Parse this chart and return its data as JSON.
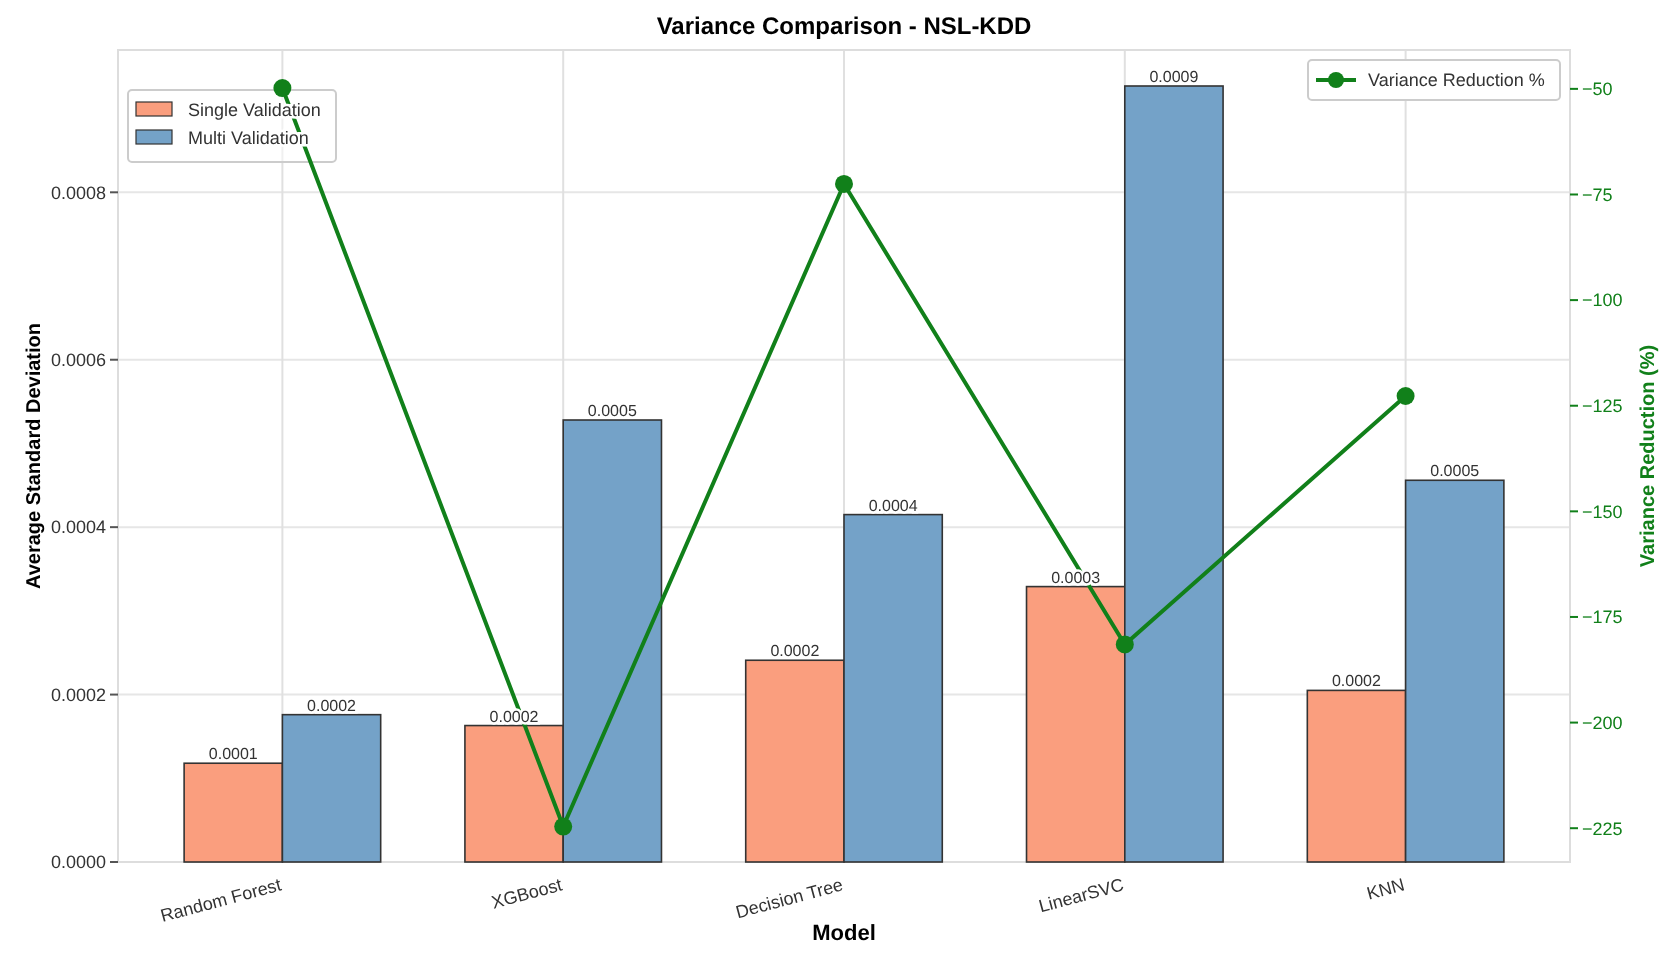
{
  "chart_data": {
    "type": "bar",
    "title": "Variance Comparison - NSL-KDD",
    "xlabel": "Model",
    "ylabel": "Average Standard Deviation",
    "y2label": "Variance Reduction (%)",
    "categories": [
      "Random Forest",
      "XGBoost",
      "Decision Tree",
      "LinearSVC",
      "KNN"
    ],
    "series": [
      {
        "name": "Single Validation",
        "color": "#fa9e7e",
        "values": [
          0.000118,
          0.000163,
          0.000241,
          0.000329,
          0.000205
        ],
        "value_labels": [
          "0.0001",
          "0.0002",
          "0.0002",
          "0.0003",
          "0.0002"
        ]
      },
      {
        "name": "Multi Validation",
        "color": "#74a2c8",
        "values": [
          0.000176,
          0.000528,
          0.000415,
          0.000927,
          0.000456
        ],
        "value_labels": [
          "0.0002",
          "0.0005",
          "0.0004",
          "0.0009",
          "0.0005"
        ]
      },
      {
        "name": "Variance Reduction %",
        "type": "line",
        "axis": "y2",
        "color": "#11801a",
        "marker": "circle",
        "values": [
          -49.8,
          -224.6,
          -72.5,
          -181.5,
          -122.7
        ]
      }
    ],
    "ylim": [
      0,
      0.00097
    ],
    "yticks": [
      {
        "value": 0,
        "label": "0.0000"
      },
      {
        "value": 0.0002,
        "label": "0.0002"
      },
      {
        "value": 0.0004,
        "label": "0.0004"
      },
      {
        "value": 0.0006,
        "label": "0.0006"
      },
      {
        "value": 0.0008,
        "label": "0.0008"
      }
    ],
    "y2lim": [
      -233,
      -40.8
    ],
    "y2ticks": [
      -225,
      -200,
      -175,
      -150,
      -125,
      -100,
      -75,
      -50
    ],
    "grid": true,
    "legend": "top left"
  }
}
